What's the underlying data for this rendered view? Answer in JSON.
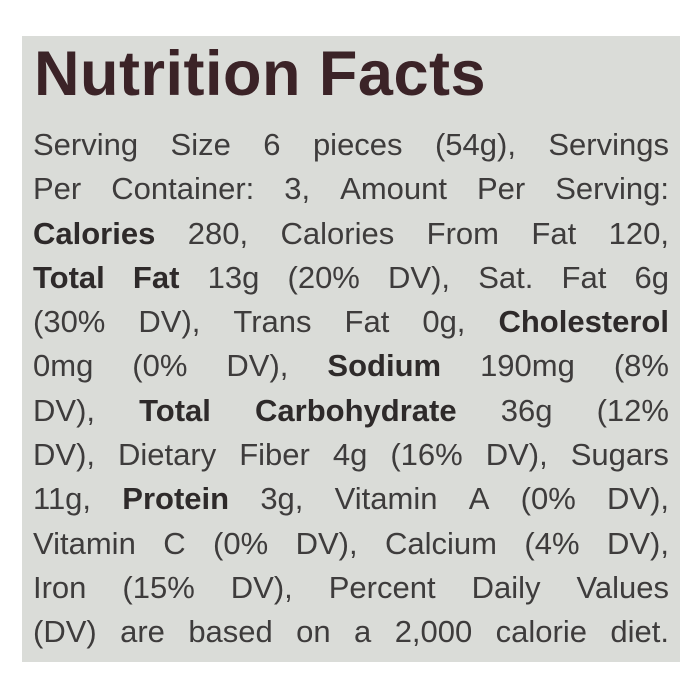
{
  "title": "Nutrition Facts",
  "lines": [
    [
      {
        "t": "Serving Size 6 pieces (54g), Servings",
        "b": false
      }
    ],
    [
      {
        "t": "Per Container: 3, Amount Per Serving:",
        "b": false
      }
    ],
    [
      {
        "t": "Calories",
        "b": true
      },
      {
        "t": " 280, Calories From Fat 120,",
        "b": false
      }
    ],
    [
      {
        "t": "Total Fat",
        "b": true
      },
      {
        "t": " 13g (20% DV), Sat. Fat 6g",
        "b": false
      }
    ],
    [
      {
        "t": "(30% DV), Trans Fat 0g, ",
        "b": false
      },
      {
        "t": "Cholesterol",
        "b": true
      }
    ],
    [
      {
        "t": "0mg (0% DV), ",
        "b": false
      },
      {
        "t": "Sodium",
        "b": true
      },
      {
        "t": " 190mg (8%",
        "b": false
      }
    ],
    [
      {
        "t": "DV), ",
        "b": false
      },
      {
        "t": "Total Carbohydrate",
        "b": true
      },
      {
        "t": " 36g (12%",
        "b": false
      }
    ],
    [
      {
        "t": "DV), Dietary Fiber 4g (16% DV), Sugars",
        "b": false
      }
    ],
    [
      {
        "t": "11g, ",
        "b": false
      },
      {
        "t": "Protein",
        "b": true
      },
      {
        "t": " 3g, Vitamin A (0% DV),",
        "b": false
      }
    ],
    [
      {
        "t": "Vitamin C (0% DV), Calcium (4% DV),",
        "b": false
      }
    ],
    [
      {
        "t": "Iron (15% DV), Percent Daily Values",
        "b": false
      }
    ],
    [
      {
        "t": "(DV) are based on a 2,000 calorie diet.",
        "b": false
      }
    ]
  ]
}
